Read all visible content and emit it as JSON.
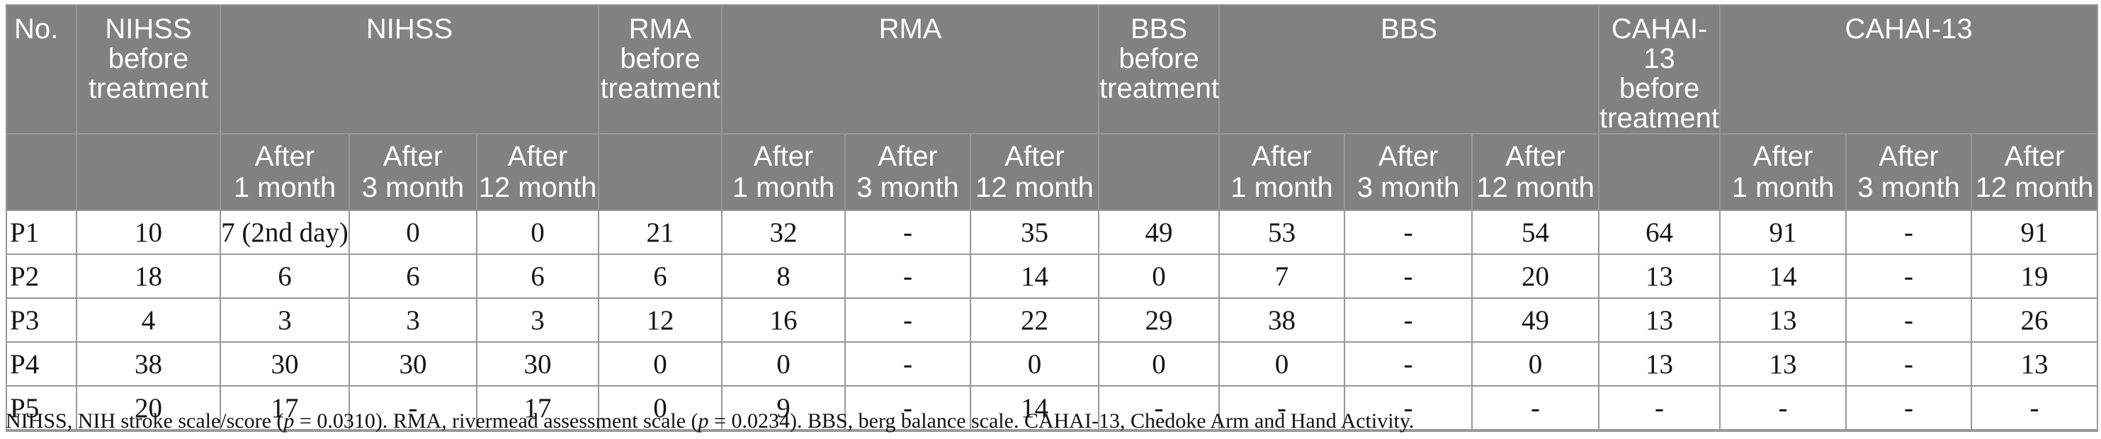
{
  "header": {
    "no": "No.",
    "groups": [
      {
        "name": "NIHSS",
        "before": "NIHSS\nbefore\ntreatment"
      },
      {
        "name": "RMA",
        "before": "RMA\nbefore\ntreatment"
      },
      {
        "name": "BBS",
        "before": "BBS\nbefore\ntreatment"
      },
      {
        "name": "CAHAI-13",
        "before": "CAHAI-13\nbefore\ntreatment"
      }
    ],
    "after_labels": [
      "After\n1 month",
      "After\n3 month",
      "After\n12 month"
    ]
  },
  "rows": [
    {
      "id": "P1",
      "values": [
        "10",
        "7 (2nd day)",
        "0",
        "0",
        "21",
        "32",
        "-",
        "35",
        "49",
        "53",
        "-",
        "54",
        "64",
        "91",
        "-",
        "91"
      ]
    },
    {
      "id": "P2",
      "values": [
        "18",
        "6",
        "6",
        "6",
        "6",
        "8",
        "-",
        "14",
        "0",
        "7",
        "-",
        "20",
        "13",
        "14",
        "-",
        "19"
      ]
    },
    {
      "id": "P3",
      "values": [
        "4",
        "3",
        "3",
        "3",
        "12",
        "16",
        "-",
        "22",
        "29",
        "38",
        "-",
        "49",
        "13",
        "13",
        "-",
        "26"
      ]
    },
    {
      "id": "P4",
      "values": [
        "38",
        "30",
        "30",
        "30",
        "0",
        "0",
        "-",
        "0",
        "0",
        "0",
        "-",
        "0",
        "13",
        "13",
        "-",
        "13"
      ]
    },
    {
      "id": "P5",
      "values": [
        "20",
        "17",
        "-",
        "17",
        "0",
        "9",
        "-",
        "14",
        "-",
        "-",
        "-",
        "-",
        "-",
        "-",
        "-",
        "-"
      ]
    }
  ],
  "footnote": {
    "seg1": "NIHSS, NIH stroke scale/score (",
    "p1": "p",
    "seg2": " = 0.0310). RMA, rivermead assessment scale (",
    "p2": "p",
    "seg3": " = 0.0234). BBS, berg balance scale. CAHAI-13, Chedoke Arm and Hand Activity."
  },
  "colors": {
    "header_bg": "#818181",
    "header_divider": "#979797",
    "body_border": "#999999",
    "header_text": "#ffffff",
    "body_text": "#151515"
  }
}
